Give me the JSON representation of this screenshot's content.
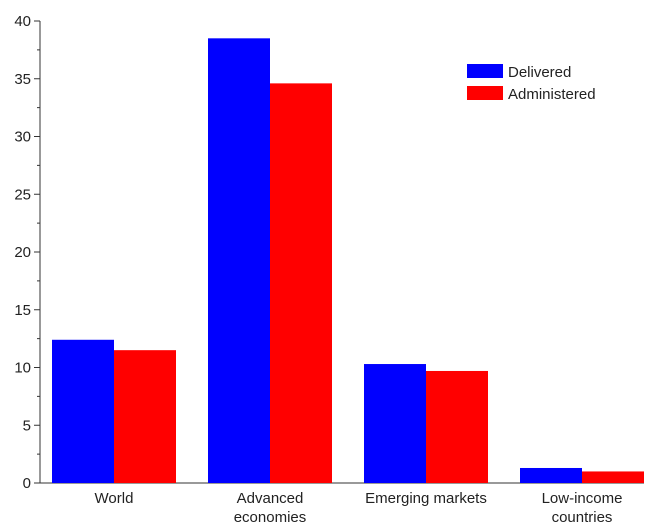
{
  "chart_data": {
    "type": "bar",
    "categories": [
      [
        "World"
      ],
      [
        "Advanced",
        "economies"
      ],
      [
        "Emerging markets"
      ],
      [
        "Low-income",
        "countries"
      ]
    ],
    "series": [
      {
        "name": "Delivered",
        "color": "#0000ff",
        "values": [
          12.4,
          38.5,
          10.3,
          1.3
        ]
      },
      {
        "name": "Administered",
        "color": "#ff0000",
        "values": [
          11.5,
          34.6,
          9.7,
          1.0
        ]
      }
    ],
    "ylim": [
      0,
      40
    ],
    "yticks": [
      0,
      5,
      10,
      15,
      20,
      25,
      30,
      35,
      40
    ],
    "minor_tick_step": 2.5,
    "legend_position": "top-right",
    "grid": false,
    "title": "",
    "xlabel": "",
    "ylabel": ""
  }
}
